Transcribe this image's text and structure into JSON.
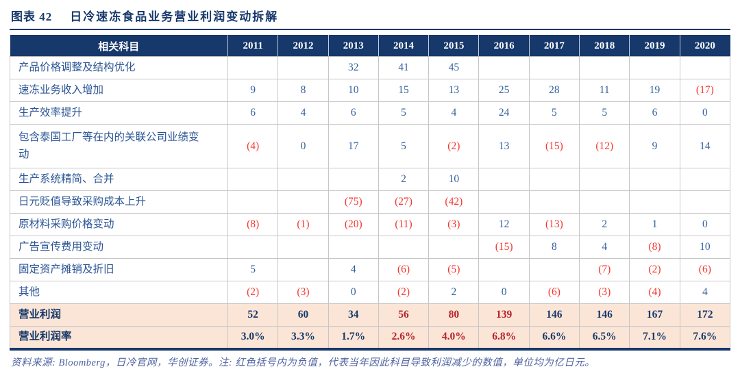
{
  "title": {
    "prefix": "图表 42",
    "text": "日冷速冻食品业务营业利润变动拆解"
  },
  "table": {
    "header": [
      "相关科目",
      "2011",
      "2012",
      "2013",
      "2014",
      "2015",
      "2016",
      "2017",
      "2018",
      "2019",
      "2020"
    ],
    "rows": [
      {
        "label": "产品价格调整及结构优化",
        "values": [
          "",
          "",
          "32",
          "41",
          "45",
          "",
          "",
          "",
          "",
          ""
        ]
      },
      {
        "label": "速冻业务收入增加",
        "values": [
          "9",
          "8",
          "10",
          "15",
          "13",
          "25",
          "28",
          "11",
          "19",
          "(17)"
        ]
      },
      {
        "label": "生产效率提升",
        "values": [
          "6",
          "4",
          "6",
          "5",
          "4",
          "24",
          "5",
          "5",
          "6",
          "0"
        ]
      },
      {
        "label": "包含泰国工厂等在内的关联公司业绩变动",
        "tall": true,
        "values": [
          "(4)",
          "0",
          "17",
          "5",
          "(2)",
          "13",
          "(15)",
          "(12)",
          "9",
          "14"
        ]
      },
      {
        "label": "生产系统精简、合并",
        "values": [
          "",
          "",
          "",
          "2",
          "10",
          "",
          "",
          "",
          "",
          ""
        ]
      },
      {
        "label": "日元贬值导致采购成本上升",
        "values": [
          "",
          "",
          "(75)",
          "(27)",
          "(42)",
          "",
          "",
          "",
          "",
          ""
        ]
      },
      {
        "label": "原材料采购价格变动",
        "values": [
          "(8)",
          "(1)",
          "(20)",
          "(11)",
          "(3)",
          "12",
          "(13)",
          "2",
          "1",
          "0"
        ]
      },
      {
        "label": "广告宣传费用变动",
        "values": [
          "",
          "",
          "",
          "",
          "",
          "(15)",
          "8",
          "4",
          "(8)",
          "10"
        ]
      },
      {
        "label": "固定资产摊销及折旧",
        "values": [
          "5",
          "",
          "4",
          "(6)",
          "(5)",
          "",
          "",
          "(7)",
          "(2)",
          "(6)"
        ]
      },
      {
        "label": "其他",
        "values": [
          "(2)",
          "(3)",
          "0",
          "(2)",
          "2",
          "0",
          "(6)",
          "(3)",
          "(4)",
          "4"
        ]
      }
    ],
    "totals": [
      {
        "label": "营业利润",
        "values": [
          "52",
          "60",
          "34",
          "56",
          "80",
          "139",
          "146",
          "146",
          "167",
          "172"
        ],
        "red_cols": [
          3,
          4,
          5
        ]
      },
      {
        "label": "营业利润率",
        "values": [
          "3.0%",
          "3.3%",
          "1.7%",
          "2.6%",
          "4.0%",
          "6.8%",
          "6.6%",
          "6.5%",
          "7.1%",
          "7.6%"
        ],
        "red_cols": [
          3,
          4,
          5
        ]
      }
    ]
  },
  "footer": "资料来源: Bloomberg，日冷官网，华创证券。注: 红色括号内为负值，代表当年因此科目导致利润减少的数值，单位均为亿日元。",
  "colors": {
    "navy": "#16386b",
    "positive_blue": "#33619f",
    "negative_red": "#f5362e",
    "total_highlight_red": "#b5232d",
    "total_row_bg": "#FBE5D6"
  }
}
